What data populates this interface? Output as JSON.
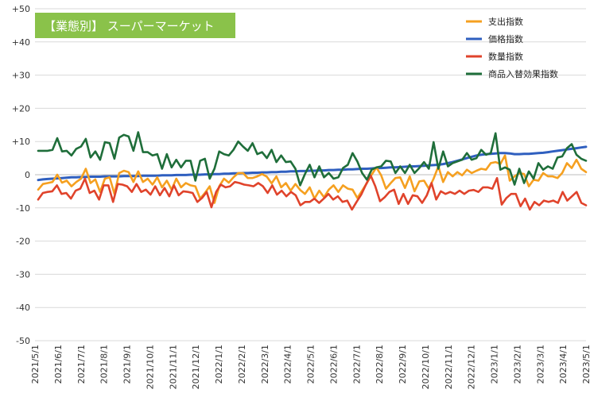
{
  "chart_data": {
    "type": "line",
    "title": "【業態別】 スーパーマーケット",
    "xlabel": "",
    "ylabel": "",
    "ylim": [
      -50,
      50
    ],
    "yticks": [
      50,
      40,
      30,
      20,
      10,
      0,
      -10,
      -20,
      -30,
      -40,
      -50
    ],
    "ytick_labels": [
      "+50",
      "+40",
      "+30",
      "+20",
      "+10",
      "0",
      "-10",
      "-20",
      "-30",
      "-40",
      "-50"
    ],
    "xtick_labels": [
      "2021/5/1",
      "2021/6/1",
      "2021/7/1",
      "2021/8/1",
      "2021/9/1",
      "2021/10/1",
      "2021/11/1",
      "2021/12/1",
      "2022/1/1",
      "2022/2/1",
      "2022/3/1",
      "2022/4/1",
      "2022/5/1",
      "2022/6/1",
      "2022/7/1",
      "2022/8/1",
      "2022/9/1",
      "2022/10/1",
      "2022/11/1",
      "2022/12/1",
      "2023/1/1",
      "2023/2/1",
      "2023/3/1",
      "2023/4/1",
      "2023/5/1"
    ],
    "grid": "horizontal",
    "legend_position": "top-right",
    "colors": {
      "spending": "#f5a020",
      "price": "#2f5fbf",
      "quantity": "#e0432b",
      "mix": "#1f6e3a",
      "title_bg": "#8ac24a"
    },
    "series": [
      {
        "name": "支出指数",
        "key": "spending",
        "values": [
          -4.5,
          -2.8,
          -2.5,
          -2.2,
          0,
          -2.4,
          -1.8,
          -3.5,
          -2.2,
          -1.2,
          1.8,
          -2.5,
          -1.4,
          -5.2,
          -1.2,
          -0.8,
          -5.8,
          0.5,
          1.2,
          0.8,
          -2.2,
          1,
          -2.2,
          -1.2,
          -3,
          -0.8,
          -3.8,
          -1.8,
          -4.5,
          -1.2,
          -3.8,
          -2.5,
          -3.2,
          -3.5,
          -7.2,
          -5.5,
          -3.5,
          -8.5,
          -3.5,
          -1.2,
          -2.4,
          -0.8,
          0.5,
          0.5,
          -1,
          -1,
          -0.5,
          0.2,
          -0.6,
          -2.6,
          -0.5,
          -3.8,
          -2.5,
          -4.8,
          -2.8,
          -4.6,
          -5.8,
          -3.8,
          -7.2,
          -4.8,
          -6.8,
          -4.5,
          -3.2,
          -5.2,
          -3.2,
          -4.2,
          -4.5,
          -7,
          -4.8,
          -2.5,
          0,
          2.2,
          -0.2,
          -4.2,
          -2.5,
          -1,
          -0.8,
          -4,
          -0.5,
          -5,
          -2,
          -1.8,
          -4.2,
          -1.2,
          2.5,
          -2.2,
          0.8,
          -0.5,
          0.8,
          -0.2,
          1.5,
          0.5,
          1.2,
          1.8,
          1.5,
          3.5,
          3.8,
          3.2,
          5.8,
          -1.8,
          -0.5,
          0.5,
          0.2,
          -3.5,
          -1.5,
          -1.8,
          0.5,
          -0.5,
          -0.5,
          -1,
          0.5,
          3.5,
          2,
          4.5,
          1.8,
          0.8
        ]
      },
      {
        "name": "価格指数",
        "key": "price",
        "values": [
          -1.6,
          -1.4,
          -1.3,
          -1.2,
          -1.1,
          -1,
          -0.9,
          -0.8,
          -0.8,
          -0.7,
          -0.7,
          -0.6,
          -0.6,
          -0.6,
          -0.5,
          -0.5,
          -0.5,
          -0.5,
          -0.4,
          -0.4,
          -0.4,
          -0.4,
          -0.3,
          -0.3,
          -0.3,
          -0.3,
          -0.2,
          -0.2,
          -0.2,
          -0.1,
          -0.1,
          -0.1,
          0,
          0,
          0,
          0.1,
          0.1,
          0.2,
          0.2,
          0.3,
          0.3,
          0.4,
          0.4,
          0.5,
          0.5,
          0.6,
          0.6,
          0.7,
          0.7,
          0.8,
          0.8,
          0.9,
          0.9,
          1,
          1,
          1.1,
          1.1,
          1.2,
          1.2,
          1.3,
          1.3,
          1.4,
          1.4,
          1.5,
          1.5,
          1.6,
          1.6,
          1.7,
          1.8,
          1.8,
          1.9,
          2,
          2,
          2.1,
          2.2,
          2.2,
          2.3,
          2.4,
          2.5,
          2.5,
          2.6,
          2.7,
          2.8,
          2.9,
          3,
          3.2,
          3.5,
          3.8,
          4.2,
          4.6,
          5,
          5.4,
          5.8,
          6,
          6.2,
          6.3,
          6.4,
          6.5,
          6.5,
          6.4,
          6.2,
          6.2,
          6.3,
          6.3,
          6.4,
          6.5,
          6.6,
          6.8,
          7,
          7.2,
          7.4,
          7.6,
          7.8,
          8,
          8.2,
          8.4
        ]
      },
      {
        "name": "数量指数",
        "key": "quantity",
        "values": [
          -7.5,
          -5.5,
          -5.2,
          -5,
          -3.2,
          -5.8,
          -5.5,
          -7.2,
          -4.8,
          -4.2,
          -1.2,
          -5.5,
          -4.8,
          -7.5,
          -3.2,
          -3.2,
          -8.2,
          -2.8,
          -3,
          -3.5,
          -5.2,
          -2.8,
          -5.2,
          -4.5,
          -6,
          -3.5,
          -6.2,
          -4,
          -6.5,
          -3.2,
          -6.2,
          -5,
          -5.2,
          -5.5,
          -8.2,
          -7,
          -5.2,
          -9.8,
          -5.2,
          -3,
          -3.8,
          -3.5,
          -2.2,
          -2.5,
          -3,
          -3.2,
          -3.5,
          -2.5,
          -3.5,
          -5.5,
          -3.2,
          -6,
          -4.8,
          -6.5,
          -5.2,
          -6.2,
          -9.2,
          -8.2,
          -8.2,
          -7.2,
          -8.5,
          -7.2,
          -5.8,
          -7.5,
          -6.5,
          -8.2,
          -7.8,
          -10.5,
          -8.2,
          -6,
          -3,
          -0.2,
          -3.5,
          -8,
          -6.8,
          -5.2,
          -4.5,
          -8.8,
          -5.8,
          -8.8,
          -6.2,
          -6.5,
          -8.5,
          -6.2,
          -2.5,
          -7.5,
          -5,
          -5.8,
          -5.2,
          -5.8,
          -4.8,
          -5.8,
          -4.8,
          -4.6,
          -5.2,
          -3.8,
          -3.8,
          -4.2,
          -1,
          -9,
          -7,
          -5.8,
          -5.8,
          -9.5,
          -7.2,
          -10.5,
          -8.2,
          -9.2,
          -7.8,
          -8.2,
          -7.8,
          -8.5,
          -5.2,
          -7.8,
          -6.5,
          -5.2,
          -8.5,
          -9.2
        ]
      },
      {
        "name": "商品入替効果指数",
        "key": "mix",
        "values": [
          7.2,
          7.2,
          7.2,
          7.5,
          11,
          7,
          7.2,
          5.8,
          7.8,
          8.5,
          10.8,
          5.2,
          7,
          4.5,
          9.8,
          9.5,
          4.8,
          11.2,
          12,
          11.5,
          7.2,
          12.8,
          6.8,
          6.8,
          5.8,
          6.2,
          1.8,
          6.2,
          2.2,
          4.5,
          2.2,
          4.2,
          4.2,
          -1.8,
          4.2,
          4.8,
          -1.2,
          1.8,
          7,
          6.2,
          5.8,
          7.5,
          10,
          8.5,
          7.2,
          9.5,
          6.2,
          6.8,
          5,
          7.5,
          3.8,
          5.8,
          3.8,
          4,
          1.8,
          -3.2,
          0.2,
          3,
          -0.8,
          2.5,
          -0.8,
          0.5,
          -1.2,
          -0.8,
          2,
          3,
          6.5,
          4,
          0.5,
          -1.5,
          1.5,
          2.2,
          2.5,
          4.2,
          4,
          0.5,
          2.5,
          0.5,
          3,
          0.5,
          2,
          3.8,
          1.8,
          9.8,
          1.8,
          7,
          2.5,
          3.5,
          4,
          4.5,
          6.5,
          4.5,
          5,
          7.5,
          6,
          6.5,
          12.5,
          1.5,
          2.2,
          1.5,
          -3,
          1.8,
          -2.5,
          1,
          -1.2,
          3.5,
          1.5,
          2.5,
          1.8,
          5.2,
          5.5,
          8,
          9.2,
          6,
          4.8,
          4.2
        ]
      }
    ]
  }
}
